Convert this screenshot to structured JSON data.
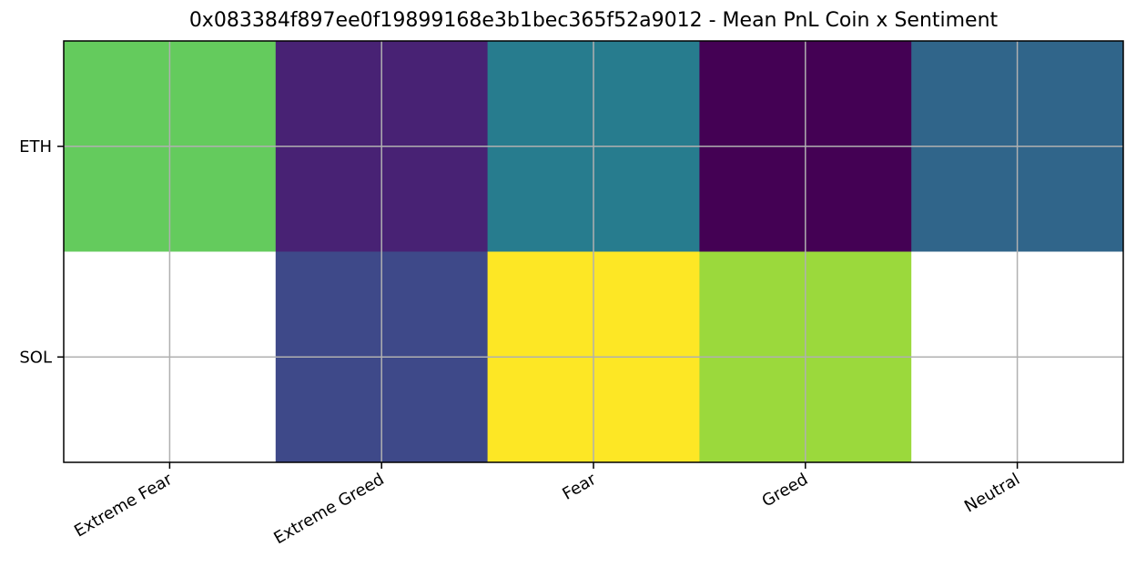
{
  "chart_data": {
    "type": "heatmap",
    "title": "0x083384f897ee0f19899168e3b1bec365f52a9012 - Mean PnL Coin x Sentiment",
    "xlabel": "",
    "ylabel": "",
    "x_categories": [
      "Extreme Fear",
      "Extreme Greed",
      "Fear",
      "Greed",
      "Neutral"
    ],
    "y_categories": [
      "ETH",
      "SOL"
    ],
    "values": [
      [
        0.85,
        0.1,
        0.45,
        0.0,
        0.3
      ],
      [
        null,
        0.2,
        1.0,
        0.9,
        null
      ]
    ],
    "colormap": "viridis",
    "grid": true,
    "missing_color": "#ffffff",
    "colors": {
      "ETH": [
        "#64cb5d",
        "#482274",
        "#277c8e",
        "#440154",
        "#30658a"
      ],
      "SOL": [
        "#ffffff",
        "#3e4989",
        "#fde725",
        "#9bd93c",
        "#ffffff"
      ]
    }
  }
}
